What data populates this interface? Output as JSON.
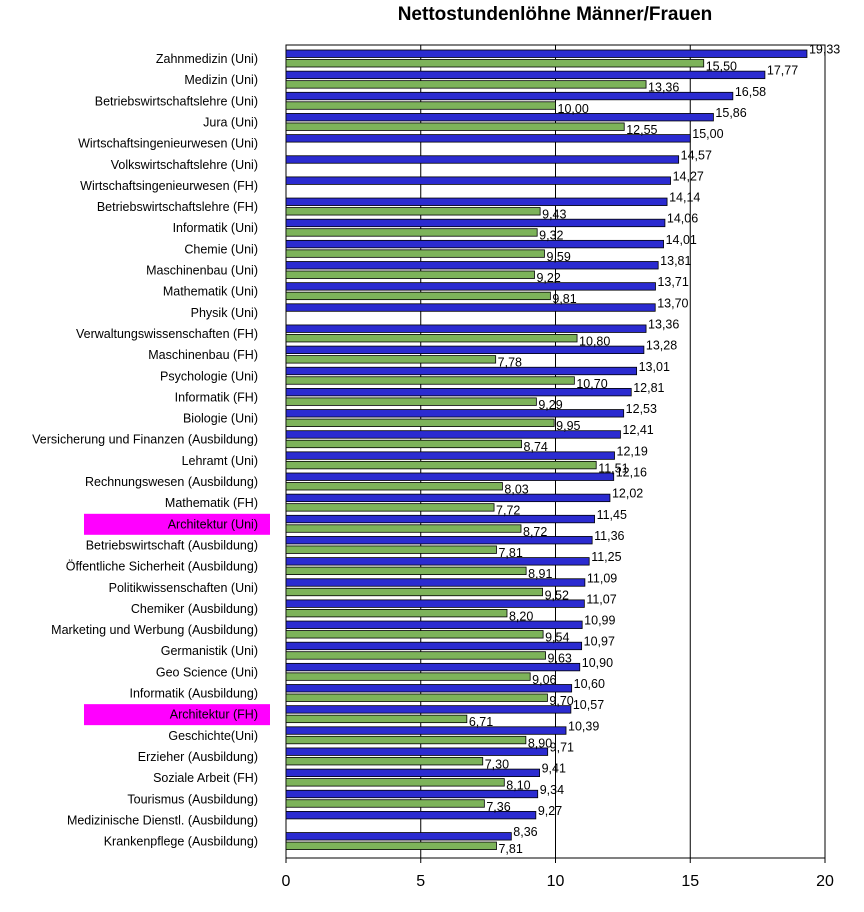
{
  "chart_data": {
    "type": "bar",
    "orientation": "horizontal",
    "title": "Nettostundenlöhne Männer/Frauen",
    "xlim": [
      0,
      20
    ],
    "xticks": [
      "0",
      "5",
      "10",
      "15",
      "20"
    ],
    "grid": "vertical",
    "legend": "none",
    "colors": {
      "men": "#2b2bd0",
      "women": "#7db35a",
      "highlight": "#ff00ff"
    },
    "highlighted": [
      "Architektur (Uni)",
      "Architektur (FH)"
    ],
    "categories": [
      "Zahnmedizin (Uni)",
      "Medizin (Uni)",
      "Betriebswirtschaftslehre (Uni)",
      "Jura (Uni)",
      "Wirtschaftsingenieurwesen (Uni)",
      "Volkswirtschaftslehre (Uni)",
      "Wirtschaftsingenieurwesen (FH)",
      "Betriebswirtschaftslehre (FH)",
      "Informatik (Uni)",
      "Chemie (Uni)",
      "Maschinenbau (Uni)",
      "Mathematik (Uni)",
      "Physik (Uni)",
      "Verwaltungswissenschaften (FH)",
      "Maschinenbau (FH)",
      "Psychologie (Uni)",
      "Informatik (FH)",
      "Biologie (Uni)",
      "Versicherung und Finanzen (Ausbildung)",
      "Lehramt (Uni)",
      "Rechnungswesen (Ausbildung)",
      "Mathematik (FH)",
      "Architektur (Uni)",
      "Betriebswirtschaft (Ausbildung)",
      "Öffentliche Sicherheit (Ausbildung)",
      "Politikwissenschaften (Uni)",
      "Chemiker (Ausbildung)",
      "Marketing und Werbung (Ausbildung)",
      "Germanistik (Uni)",
      "Geo Science (Uni)",
      "Informatik (Ausbildung)",
      "Architektur (FH)",
      "Geschichte(Uni)",
      "Erzieher (Ausbildung)",
      "Soziale Arbeit (FH)",
      "Tourismus (Ausbildung)",
      "Medizinische Dienstl. (Ausbildung)",
      "Krankenpflege (Ausbildung)"
    ],
    "series": [
      {
        "key": "men",
        "values": [
          19.33,
          17.77,
          16.58,
          15.86,
          15.0,
          14.57,
          14.27,
          14.14,
          14.06,
          14.01,
          13.81,
          13.71,
          13.7,
          13.36,
          13.28,
          13.01,
          12.81,
          12.53,
          12.41,
          12.19,
          12.16,
          12.02,
          11.45,
          11.36,
          11.25,
          11.09,
          11.07,
          10.99,
          10.97,
          10.9,
          10.6,
          10.57,
          10.39,
          9.71,
          9.41,
          9.34,
          9.27,
          8.36
        ],
        "labels": [
          "19,33",
          "17,77",
          "16,58",
          "15,86",
          "15,00",
          "14,57",
          "14,27",
          "14,14",
          "14,06",
          "14,01",
          "13,81",
          "13,71",
          "13,70",
          "13,36",
          "13,28",
          "13,01",
          "12,81",
          "12,53",
          "12,41",
          "12,19",
          "12,16",
          "12,02",
          "11,45",
          "11,36",
          "11,25",
          "11,09",
          "11,07",
          "10,99",
          "10,97",
          "10,90",
          "10,60",
          "10,57",
          "10,39",
          "9,71",
          "9,41",
          "9,34",
          "9,27",
          "8,36"
        ]
      },
      {
        "key": "women",
        "values": [
          15.5,
          13.36,
          10.0,
          12.55,
          null,
          null,
          null,
          9.43,
          9.32,
          9.59,
          9.22,
          9.81,
          null,
          10.8,
          7.78,
          10.7,
          9.29,
          9.95,
          8.74,
          11.51,
          8.03,
          7.72,
          8.72,
          7.81,
          8.91,
          9.52,
          8.2,
          9.54,
          9.63,
          9.06,
          9.7,
          6.71,
          8.9,
          7.3,
          8.1,
          7.36,
          null,
          7.81
        ],
        "labels": [
          "15,50",
          "13,36",
          "10,00",
          "12,55",
          "",
          "",
          "",
          "9,43",
          "9,32",
          "9,59",
          "9,22",
          "9,81",
          "",
          "10,80",
          "7,78",
          "10,70",
          "9,29",
          "9,95",
          "8,74",
          "11,51",
          "8,03",
          "7,72",
          "8,72",
          "7,81",
          "8,91",
          "9,52",
          "8,20",
          "9,54",
          "9,63",
          "9,06",
          "9,70",
          "6,71",
          "8,90",
          "7,30",
          "8,10",
          "7,36",
          "",
          "7,81"
        ]
      }
    ]
  }
}
